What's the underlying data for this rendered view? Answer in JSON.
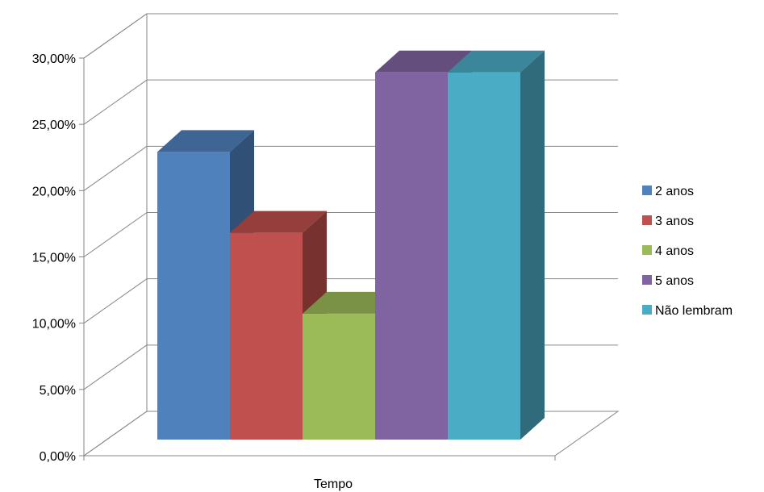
{
  "chart_data": {
    "type": "bar",
    "title": "",
    "xlabel": "Tempo",
    "ylabel": "",
    "categories": [
      "Tempo"
    ],
    "series": [
      {
        "name": "2 anos",
        "values": [
          21.7
        ],
        "color": "#4F81BD"
      },
      {
        "name": "3 anos",
        "values": [
          15.6
        ],
        "color": "#C0504D"
      },
      {
        "name": "4 anos",
        "values": [
          9.5
        ],
        "color": "#9BBB59"
      },
      {
        "name": "5 anos",
        "values": [
          27.7
        ],
        "color": "#8064A2"
      },
      {
        "name": "Não lembram",
        "values": [
          27.7
        ],
        "color": "#4BACC6"
      }
    ],
    "ylim": [
      0,
      30
    ],
    "yticks": [
      "0,00%",
      "5,00%",
      "10,00%",
      "15,00%",
      "20,00%",
      "25,00%",
      "30,00%"
    ],
    "grid": true,
    "legend_position": "right",
    "style": "3d-clustered-column"
  }
}
